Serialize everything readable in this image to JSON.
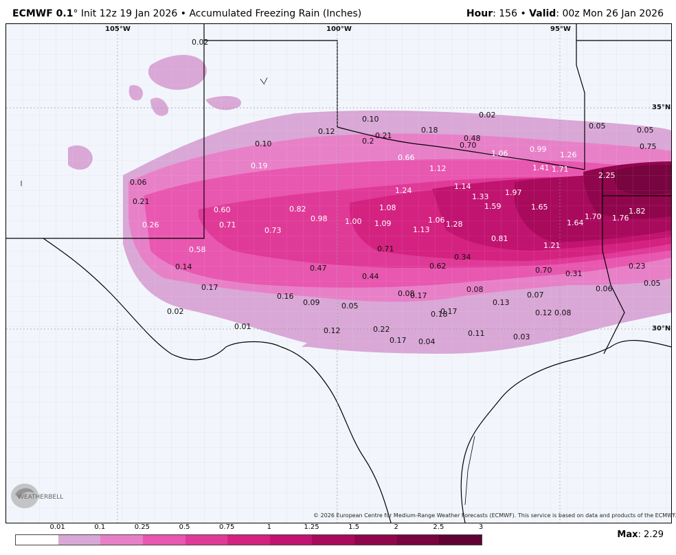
{
  "header": {
    "model": "ECMWF 0.1",
    "degree": "°",
    "init": "Init 12z 19 Jan 2026",
    "bullet": "•",
    "product": "Accumulated Freezing Rain (Inches)",
    "hour_label": "Hour",
    "hour": ": 156",
    "valid_label": "Valid",
    "valid": ": 00z Mon 26 Jan 2026"
  },
  "gridlines": {
    "lon_labels": [
      "105°W",
      "100°W",
      "95°W"
    ],
    "lat_labels": [
      "35°N",
      "30°N"
    ]
  },
  "accumulation_labels": [
    "0.02",
    "0.10",
    "0.12",
    "0.21",
    "0.2",
    "0.18",
    "0.02",
    "0.48",
    "0.70",
    "1.06",
    "0.99",
    "1.26",
    "0.05",
    "0.05",
    "0.75",
    "0.10",
    "0.19",
    "0.66",
    "1.12",
    "1.41",
    "1.71",
    "2.25",
    "0.06",
    "0.21",
    "1.24",
    "1.14",
    "1.33",
    "1.97",
    "0.60",
    "0.82",
    "1.08",
    "1.59",
    "1.65",
    "1.70",
    "1.82",
    "0.26",
    "0.71",
    "0.98",
    "1.00",
    "1.09",
    "1.06",
    "1.28",
    "1.64",
    "1.76",
    "0.73",
    "1.13",
    "0.81",
    "1.21",
    "0.58",
    "0.71",
    "0.62",
    "0.34",
    "0.14",
    "0.47",
    "0.44",
    "0.70",
    "0.31",
    "0.23",
    "0.17",
    "0.08",
    "0.17",
    "0.08",
    "0.07",
    "0.06",
    "0.05",
    "0.16",
    "0.09",
    "0.05",
    "0.13",
    "0.02",
    "0.18",
    "0.17",
    "0.12",
    "0.08",
    "0.01",
    "0.12",
    "0.22",
    "0.11",
    "0.03",
    "0.17",
    "0.04"
  ],
  "copyright": "© 2026 European Centre for Medium-Range Weather Forecasts (ECMWF). This service is based on data and products of the ECMWF.",
  "logo": {
    "text": "WEATHERBELL",
    "icon": "weatherbell-logo"
  },
  "legend": {
    "ticks": [
      "0.01",
      "0.1",
      "0.25",
      "0.5",
      "0.75",
      "1",
      "1.25",
      "1.5",
      "2",
      "2.5",
      "3"
    ],
    "colors": [
      "#ffffff",
      "#d9a8d6",
      "#e880c8",
      "#e857b0",
      "#e03a98",
      "#d42280",
      "#c01470",
      "#a80a5c",
      "#90064c",
      "#780440",
      "#600234"
    ]
  },
  "max": {
    "label": "Max",
    "value": ": 2.29"
  }
}
